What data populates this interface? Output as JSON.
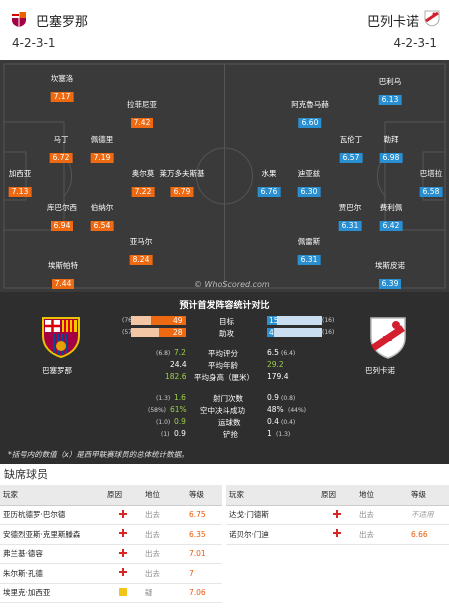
{
  "header": {
    "home": {
      "name": "巴塞罗那",
      "formation": "4-2-3-1"
    },
    "away": {
      "name": "巴列卡诺",
      "formation": "4-2-3-1"
    }
  },
  "pitch": {
    "watermark": "© WhoScored.com",
    "home_players": [
      {
        "name": "坎塞洛",
        "rating": "7.17"
      },
      {
        "name": "拉菲尼亚",
        "rating": "7.42"
      },
      {
        "name": "马丁",
        "rating": "6.72"
      },
      {
        "name": "佩德里",
        "rating": "7.19"
      },
      {
        "name": "加西亚",
        "rating": "7.13"
      },
      {
        "name": "奥尔莫",
        "rating": "7.22"
      },
      {
        "name": "莱万多夫斯基",
        "rating": "6.79"
      },
      {
        "name": "库巴尔西",
        "rating": "6.94"
      },
      {
        "name": "伯纳尔",
        "rating": "6.54"
      },
      {
        "name": "亚马尔",
        "rating": "8.24"
      },
      {
        "name": "埃斯帕特",
        "rating": "7.44"
      }
    ],
    "away_players": [
      {
        "name": "巴利乌",
        "rating": "6.13"
      },
      {
        "name": "阿克魯马赫",
        "rating": "6.60"
      },
      {
        "name": "瓦伦丁",
        "rating": "6.57"
      },
      {
        "name": "勒拜",
        "rating": "6.98"
      },
      {
        "name": "水果",
        "rating": "6.76"
      },
      {
        "name": "迪亚兹",
        "rating": "6.30"
      },
      {
        "name": "巴塔拉",
        "rating": "6.58"
      },
      {
        "name": "贾巴尔",
        "rating": "6.31"
      },
      {
        "name": "费利佩",
        "rating": "6.42"
      },
      {
        "name": "佩雷斯",
        "rating": "6.31"
      },
      {
        "name": "埃斯皮诺",
        "rating": "6.39"
      }
    ]
  },
  "stats": {
    "title": "预计首发阵容统计对比",
    "home_name": "巴塞罗那",
    "away_name": "巴列卡诺",
    "bars": [
      {
        "label": "目标",
        "home": "49",
        "home_prev": "(76)",
        "away": "15",
        "away_prev": "(16)",
        "home_frac": 0.64,
        "away_frac": 0.19
      },
      {
        "label": "助攻",
        "home": "28",
        "home_prev": "(57)",
        "away": "4",
        "away_prev": "(16)",
        "home_frac": 0.49,
        "away_frac": 0.12
      }
    ],
    "rows1": [
      {
        "label": "平均评分",
        "home_prev": "(6.8)",
        "home": "7.2",
        "away": "6.5",
        "away_prev": "(6.4)"
      },
      {
        "label": "平均年龄",
        "home_prev": "",
        "home": "24.4",
        "away": "29.2",
        "away_prev": ""
      },
      {
        "label": "平均身高（厘米）",
        "home_prev": "",
        "home": "182.6",
        "away": "179.4",
        "away_prev": ""
      }
    ],
    "rows2": [
      {
        "label": "射门次数",
        "home_prev": "(1.3)",
        "home": "1.6",
        "away": "0.9",
        "away_prev": "(0.8)"
      },
      {
        "label": "空中决斗成功",
        "home_prev": "(58%)",
        "home": "61%",
        "away": "48%",
        "away_prev": "(44%)"
      },
      {
        "label": "运球数",
        "home_prev": "(1.0)",
        "home": "0.9",
        "away": "0.4",
        "away_prev": "(0.4)"
      },
      {
        "label": "铲抢",
        "home_prev": "(1)",
        "home": "0.9",
        "away": "1",
        "away_prev": "(1.3)"
      }
    ],
    "note": "*括号内的数值（x）是西甲联赛球员的总体统计数据。"
  },
  "absent": {
    "title": "缺席球员",
    "headers": [
      "玩家",
      "原因",
      "地位",
      "等级"
    ],
    "home_rows": [
      {
        "player": "亚历杭德罗·巴尔德",
        "reason": "injury",
        "status": "出去",
        "rating": "6.75"
      },
      {
        "player": "安德烈亚斯·克里斯滕森",
        "reason": "injury",
        "status": "出去",
        "rating": "6.35"
      },
      {
        "player": "弗兰基·德容",
        "reason": "injury",
        "status": "出去",
        "rating": "7.01"
      },
      {
        "player": "朱尔斯·孔德",
        "reason": "injury",
        "status": "出去",
        "rating": "7"
      },
      {
        "player": "埃里克·加西亚",
        "reason": "doubt",
        "status": "疑",
        "rating": "7.06"
      }
    ],
    "away_rows": [
      {
        "player": "达戈·门德斯",
        "reason": "injury",
        "status": "出去",
        "rating": "不适用"
      },
      {
        "player": "诺贝尔·门迪",
        "reason": "injury",
        "status": "出去",
        "rating": "6.66"
      }
    ]
  }
}
